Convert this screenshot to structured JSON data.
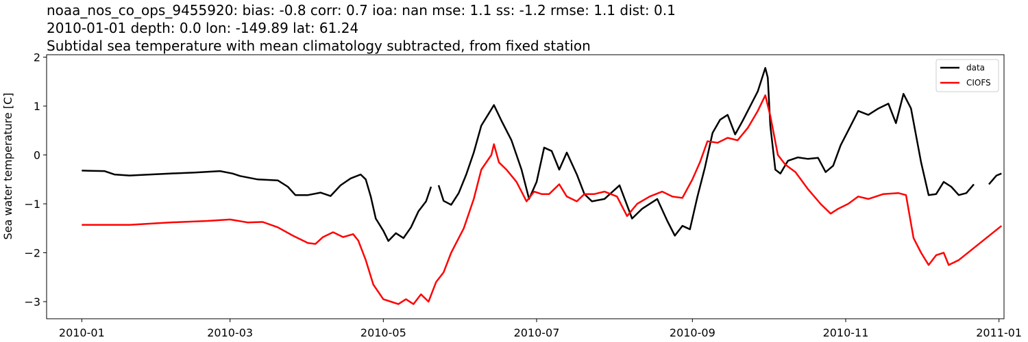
{
  "chart_data": {
    "type": "line",
    "title_lines": [
      "noaa_nos_co_ops_9455920: bias: -0.8  corr: 0.7  ioa: nan  mse: 1.1  ss: -1.2  rmse: 1.1  dist: 0.1",
      "2010-01-01 depth: 0.0 lon: -149.89 lat: 61.24",
      "Subtidal sea temperature with mean climatology subtracted, from fixed station"
    ],
    "xlabel": "",
    "ylabel": "Sea water temperature [C]",
    "xlim": [
      "2009-12-18",
      "2011-01-03"
    ],
    "ylim": [
      -3.35,
      2.05
    ],
    "x_ticks": [
      "2010-01-01",
      "2010-03-01",
      "2010-05-01",
      "2010-07-01",
      "2010-09-01",
      "2010-11-01",
      "2011-01-01"
    ],
    "x_tick_labels": [
      "2010-01",
      "2010-03",
      "2010-05",
      "2010-07",
      "2010-09",
      "2010-11",
      "2011-01"
    ],
    "y_ticks": [
      -3,
      -2,
      -1,
      0,
      1,
      2
    ],
    "y_tick_labels": [
      "−3",
      "−2",
      "−1",
      "0",
      "1",
      "2"
    ],
    "grid": false,
    "legend": {
      "position": "top-right",
      "entries": [
        "data",
        "CIOFS"
      ]
    },
    "series": [
      {
        "name": "data",
        "color": "#000000",
        "segments": [
          [
            [
              "2010-01-01",
              -0.32
            ],
            [
              "2010-01-10",
              -0.33
            ],
            [
              "2010-01-14",
              -0.4
            ],
            [
              "2010-01-20",
              -0.42
            ],
            [
              "2010-02-05",
              -0.38
            ],
            [
              "2010-02-15",
              -0.36
            ],
            [
              "2010-02-25",
              -0.33
            ],
            [
              "2010-03-02",
              -0.38
            ],
            [
              "2010-03-05",
              -0.43
            ],
            [
              "2010-03-12",
              -0.5
            ],
            [
              "2010-03-20",
              -0.52
            ],
            [
              "2010-03-24",
              -0.65
            ],
            [
              "2010-03-27",
              -0.82
            ],
            [
              "2010-04-01",
              -0.82
            ],
            [
              "2010-04-06",
              -0.77
            ],
            [
              "2010-04-10",
              -0.84
            ],
            [
              "2010-04-14",
              -0.62
            ],
            [
              "2010-04-18",
              -0.48
            ],
            [
              "2010-04-22",
              -0.4
            ],
            [
              "2010-04-24",
              -0.5
            ],
            [
              "2010-04-26",
              -0.85
            ],
            [
              "2010-04-28",
              -1.3
            ],
            [
              "2010-05-01",
              -1.55
            ],
            [
              "2010-05-03",
              -1.76
            ],
            [
              "2010-05-06",
              -1.6
            ],
            [
              "2010-05-09",
              -1.7
            ],
            [
              "2010-05-12",
              -1.48
            ],
            [
              "2010-05-15",
              -1.15
            ],
            [
              "2010-05-18",
              -0.95
            ],
            [
              "2010-05-20",
              -0.65
            ]
          ],
          [
            [
              "2010-05-23",
              -0.62
            ],
            [
              "2010-05-25",
              -0.94
            ],
            [
              "2010-05-28",
              -1.02
            ],
            [
              "2010-05-31",
              -0.78
            ],
            [
              "2010-06-03",
              -0.4
            ],
            [
              "2010-06-06",
              0.05
            ],
            [
              "2010-06-09",
              0.6
            ],
            [
              "2010-06-12",
              0.85
            ],
            [
              "2010-06-14",
              1.02
            ],
            [
              "2010-06-17",
              0.7
            ],
            [
              "2010-06-21",
              0.3
            ],
            [
              "2010-06-25",
              -0.3
            ],
            [
              "2010-06-28",
              -0.9
            ],
            [
              "2010-07-01",
              -0.55
            ],
            [
              "2010-07-04",
              0.15
            ],
            [
              "2010-07-07",
              0.08
            ],
            [
              "2010-07-10",
              -0.3
            ],
            [
              "2010-07-13",
              0.05
            ],
            [
              "2010-07-17",
              -0.4
            ],
            [
              "2010-07-20",
              -0.8
            ],
            [
              "2010-07-23",
              -0.95
            ],
            [
              "2010-07-28",
              -0.9
            ],
            [
              "2010-08-03",
              -0.62
            ],
            [
              "2010-08-08",
              -1.3
            ],
            [
              "2010-08-12",
              -1.1
            ],
            [
              "2010-08-18",
              -0.9
            ],
            [
              "2010-08-22",
              -1.35
            ],
            [
              "2010-08-25",
              -1.65
            ],
            [
              "2010-08-28",
              -1.45
            ],
            [
              "2010-08-31",
              -1.52
            ],
            [
              "2010-09-03",
              -0.85
            ],
            [
              "2010-09-06",
              -0.25
            ],
            [
              "2010-09-09",
              0.45
            ],
            [
              "2010-09-12",
              0.72
            ],
            [
              "2010-09-15",
              0.82
            ],
            [
              "2010-09-18",
              0.42
            ],
            [
              "2010-09-21",
              0.7
            ],
            [
              "2010-09-24",
              1.0
            ],
            [
              "2010-09-27",
              1.3
            ],
            [
              "2010-09-30",
              1.78
            ],
            [
              "2010-10-01",
              1.58
            ],
            [
              "2010-10-02",
              0.6
            ],
            [
              "2010-10-04",
              -0.3
            ],
            [
              "2010-10-06",
              -0.38
            ],
            [
              "2010-10-09",
              -0.12
            ],
            [
              "2010-10-13",
              -0.05
            ],
            [
              "2010-10-17",
              -0.08
            ],
            [
              "2010-10-21",
              -0.06
            ],
            [
              "2010-10-24",
              -0.35
            ],
            [
              "2010-10-27",
              -0.22
            ],
            [
              "2010-10-30",
              0.2
            ],
            [
              "2010-11-02",
              0.5
            ],
            [
              "2010-11-06",
              0.9
            ],
            [
              "2010-11-10",
              0.82
            ],
            [
              "2010-11-14",
              0.95
            ],
            [
              "2010-11-18",
              1.05
            ],
            [
              "2010-11-21",
              0.65
            ],
            [
              "2010-11-24",
              1.25
            ],
            [
              "2010-11-27",
              0.95
            ],
            [
              "2010-12-01",
              -0.15
            ],
            [
              "2010-12-04",
              -0.82
            ],
            [
              "2010-12-07",
              -0.8
            ],
            [
              "2010-12-10",
              -0.55
            ],
            [
              "2010-12-13",
              -0.65
            ],
            [
              "2010-12-16",
              -0.82
            ],
            [
              "2010-12-19",
              -0.78
            ],
            [
              "2010-12-22",
              -0.6
            ]
          ],
          [
            [
              "2010-12-28",
              -0.6
            ],
            [
              "2010-12-31",
              -0.42
            ],
            [
              "2011-01-02",
              -0.38
            ]
          ]
        ]
      },
      {
        "name": "CIOFS",
        "color": "#ff0000",
        "segments": [
          [
            [
              "2010-01-01",
              -1.43
            ],
            [
              "2010-01-20",
              -1.43
            ],
            [
              "2010-02-05",
              -1.38
            ],
            [
              "2010-02-20",
              -1.35
            ],
            [
              "2010-03-01",
              -1.32
            ],
            [
              "2010-03-08",
              -1.38
            ],
            [
              "2010-03-14",
              -1.37
            ],
            [
              "2010-03-20",
              -1.48
            ],
            [
              "2010-03-26",
              -1.65
            ],
            [
              "2010-04-01",
              -1.8
            ],
            [
              "2010-04-04",
              -1.82
            ],
            [
              "2010-04-07",
              -1.68
            ],
            [
              "2010-04-11",
              -1.58
            ],
            [
              "2010-04-15",
              -1.68
            ],
            [
              "2010-04-19",
              -1.62
            ],
            [
              "2010-04-21",
              -1.75
            ],
            [
              "2010-04-24",
              -2.15
            ],
            [
              "2010-04-27",
              -2.65
            ],
            [
              "2010-05-01",
              -2.95
            ],
            [
              "2010-05-04",
              -3.0
            ],
            [
              "2010-05-07",
              -3.05
            ],
            [
              "2010-05-10",
              -2.95
            ],
            [
              "2010-05-13",
              -3.05
            ],
            [
              "2010-05-16",
              -2.85
            ],
            [
              "2010-05-19",
              -3.0
            ],
            [
              "2010-05-22",
              -2.6
            ],
            [
              "2010-05-25",
              -2.4
            ],
            [
              "2010-05-28",
              -2.0
            ],
            [
              "2010-06-02",
              -1.5
            ],
            [
              "2010-06-06",
              -0.9
            ],
            [
              "2010-06-09",
              -0.3
            ],
            [
              "2010-06-13",
              0.0
            ],
            [
              "2010-06-14",
              0.22
            ],
            [
              "2010-06-16",
              -0.15
            ],
            [
              "2010-06-19",
              -0.3
            ],
            [
              "2010-06-23",
              -0.55
            ],
            [
              "2010-06-27",
              -0.95
            ],
            [
              "2010-06-30",
              -0.75
            ],
            [
              "2010-07-03",
              -0.8
            ],
            [
              "2010-07-06",
              -0.8
            ],
            [
              "2010-07-10",
              -0.6
            ],
            [
              "2010-07-13",
              -0.85
            ],
            [
              "2010-07-17",
              -0.95
            ],
            [
              "2010-07-20",
              -0.8
            ],
            [
              "2010-07-24",
              -0.8
            ],
            [
              "2010-07-28",
              -0.75
            ],
            [
              "2010-08-02",
              -0.85
            ],
            [
              "2010-08-06",
              -1.25
            ],
            [
              "2010-08-10",
              -1.0
            ],
            [
              "2010-08-15",
              -0.85
            ],
            [
              "2010-08-20",
              -0.75
            ],
            [
              "2010-08-24",
              -0.85
            ],
            [
              "2010-08-28",
              -0.88
            ],
            [
              "2010-09-01",
              -0.5
            ],
            [
              "2010-09-04",
              -0.15
            ],
            [
              "2010-09-07",
              0.28
            ],
            [
              "2010-09-11",
              0.25
            ],
            [
              "2010-09-15",
              0.35
            ],
            [
              "2010-09-19",
              0.3
            ],
            [
              "2010-09-23",
              0.55
            ],
            [
              "2010-09-27",
              0.9
            ],
            [
              "2010-09-30",
              1.22
            ],
            [
              "2010-10-02",
              0.8
            ],
            [
              "2010-10-05",
              0.0
            ],
            [
              "2010-10-08",
              -0.2
            ],
            [
              "2010-10-12",
              -0.35
            ],
            [
              "2010-10-17",
              -0.7
            ],
            [
              "2010-10-22",
              -1.0
            ],
            [
              "2010-10-26",
              -1.2
            ],
            [
              "2010-10-29",
              -1.1
            ],
            [
              "2010-11-02",
              -1.0
            ],
            [
              "2010-11-06",
              -0.85
            ],
            [
              "2010-11-10",
              -0.9
            ],
            [
              "2010-11-16",
              -0.8
            ],
            [
              "2010-11-22",
              -0.78
            ],
            [
              "2010-11-25",
              -0.82
            ],
            [
              "2010-11-28",
              -1.7
            ],
            [
              "2010-12-01",
              -2.0
            ],
            [
              "2010-12-04",
              -2.25
            ],
            [
              "2010-12-07",
              -2.05
            ],
            [
              "2010-12-10",
              -2.0
            ],
            [
              "2010-12-12",
              -2.25
            ],
            [
              "2010-12-16",
              -2.15
            ],
            [
              "2011-01-02",
              -1.45
            ]
          ]
        ]
      }
    ]
  }
}
